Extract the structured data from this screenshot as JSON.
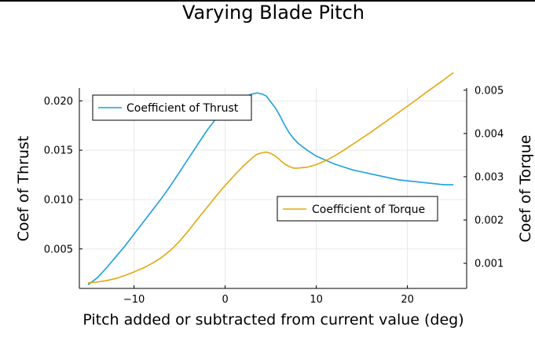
{
  "chart_data": {
    "type": "line",
    "title": "Varying Blade Pitch",
    "xlabel": "Pitch added or subtracted from current value (deg)",
    "ylabel_left": "Coef of Thrust",
    "ylabel_right": "Coef of Torque",
    "xlim": [
      -16,
      26.5
    ],
    "ylim_left": [
      0.001,
      0.0213
    ],
    "ylim_right": [
      0.00042,
      0.00505
    ],
    "xticks": [
      -10,
      0,
      10,
      20
    ],
    "xtick_labels": [
      "−10",
      "0",
      "10",
      "20"
    ],
    "yticks_left": [
      0.005,
      0.01,
      0.015,
      0.02
    ],
    "ytick_labels_left": [
      "0.005",
      "0.010",
      "0.015",
      "0.020"
    ],
    "yticks_right": [
      0.001,
      0.002,
      0.003,
      0.004,
      0.005
    ],
    "ytick_labels_right": [
      "0.001",
      "0.002",
      "0.003",
      "0.004",
      "0.005"
    ],
    "grid": true,
    "series": [
      {
        "name": "Coefficient of Thrust",
        "axis": "left",
        "color": "#1f9ee0",
        "legend_position": "top-left",
        "x": [
          -15,
          -14,
          -13,
          -12,
          -11,
          -10,
          -9,
          -8,
          -7,
          -6,
          -5,
          -4,
          -3,
          -2,
          -1,
          0,
          1,
          2,
          3,
          3.5,
          4,
          4.5,
          5,
          5.5,
          6,
          6.5,
          7,
          7.5,
          8,
          9,
          10,
          11,
          12,
          13,
          14,
          15,
          16,
          17,
          18,
          19,
          20,
          21,
          22,
          23,
          24,
          25
        ],
        "y": [
          0.0014,
          0.0021,
          0.0031,
          0.0042,
          0.0053,
          0.0065,
          0.0077,
          0.0089,
          0.0101,
          0.0114,
          0.0128,
          0.0142,
          0.0156,
          0.017,
          0.0182,
          0.0192,
          0.02,
          0.0204,
          0.0207,
          0.0208,
          0.0207,
          0.0205,
          0.0199,
          0.0193,
          0.0185,
          0.0176,
          0.0168,
          0.0162,
          0.0157,
          0.015,
          0.0144,
          0.014,
          0.0136,
          0.0133,
          0.013,
          0.0128,
          0.0126,
          0.0124,
          0.0122,
          0.012,
          0.0119,
          0.0118,
          0.0117,
          0.0116,
          0.0115,
          0.0115
        ]
      },
      {
        "name": "Coefficient of Torque",
        "axis": "right",
        "color": "#e3a80f",
        "legend_position": "center-right",
        "x": [
          -15,
          -14,
          -13,
          -12,
          -11,
          -10,
          -9,
          -8,
          -7,
          -6,
          -5,
          -4,
          -3,
          -2,
          -1,
          0,
          1,
          2,
          3,
          3.5,
          4,
          4.5,
          5,
          5.5,
          6,
          6.5,
          7,
          7.5,
          8,
          9,
          10,
          11,
          12,
          13,
          14,
          15,
          16,
          17,
          18,
          19,
          20,
          21,
          22,
          23,
          24,
          25
        ],
        "y": [
          0.00055,
          0.00057,
          0.0006,
          0.00065,
          0.00072,
          0.0008,
          0.00089,
          0.001,
          0.00113,
          0.0013,
          0.00151,
          0.00176,
          0.00203,
          0.00229,
          0.00255,
          0.0028,
          0.00303,
          0.00325,
          0.00344,
          0.00352,
          0.00355,
          0.00357,
          0.00354,
          0.00348,
          0.00339,
          0.0033,
          0.00324,
          0.0032,
          0.0032,
          0.00322,
          0.00328,
          0.00337,
          0.00348,
          0.00361,
          0.00375,
          0.00389,
          0.00403,
          0.00418,
          0.00433,
          0.00448,
          0.00463,
          0.00478,
          0.00494,
          0.00509,
          0.00524,
          0.0054
        ]
      }
    ]
  }
}
